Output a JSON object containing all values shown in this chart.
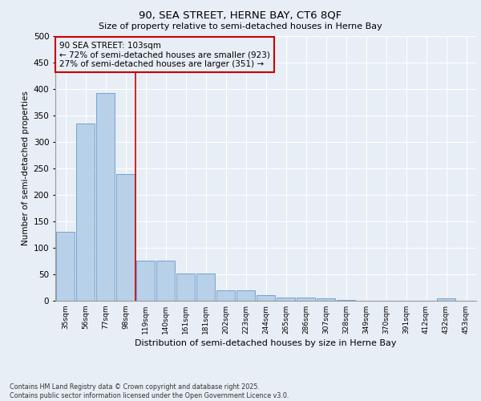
{
  "title1": "90, SEA STREET, HERNE BAY, CT6 8QF",
  "title2": "Size of property relative to semi-detached houses in Herne Bay",
  "xlabel": "Distribution of semi-detached houses by size in Herne Bay",
  "ylabel": "Number of semi-detached properties",
  "categories": [
    "35sqm",
    "56sqm",
    "77sqm",
    "98sqm",
    "119sqm",
    "140sqm",
    "161sqm",
    "181sqm",
    "202sqm",
    "223sqm",
    "244sqm",
    "265sqm",
    "286sqm",
    "307sqm",
    "328sqm",
    "349sqm",
    "370sqm",
    "391sqm",
    "412sqm",
    "432sqm",
    "453sqm"
  ],
  "values": [
    131,
    335,
    392,
    240,
    76,
    76,
    52,
    52,
    19,
    19,
    10,
    6,
    6,
    5,
    1,
    0,
    0,
    0,
    0,
    4,
    0
  ],
  "bar_color": "#b8d0e8",
  "bar_edge_color": "#6699cc",
  "vline_x": 3.5,
  "annotation_box_color": "#cc0000",
  "vline_color": "#cc0000",
  "bg_color": "#e8eef5",
  "grid_color": "#ffffff",
  "ann_line1": "90 SEA STREET: 103sqm",
  "ann_line2": "← 72% of semi-detached houses are smaller (923)",
  "ann_line3": "27% of semi-detached houses are larger (351) →",
  "footnote": "Contains HM Land Registry data © Crown copyright and database right 2025.\nContains public sector information licensed under the Open Government Licence v3.0.",
  "ylim": [
    0,
    500
  ],
  "yticks": [
    0,
    50,
    100,
    150,
    200,
    250,
    300,
    350,
    400,
    450,
    500
  ]
}
